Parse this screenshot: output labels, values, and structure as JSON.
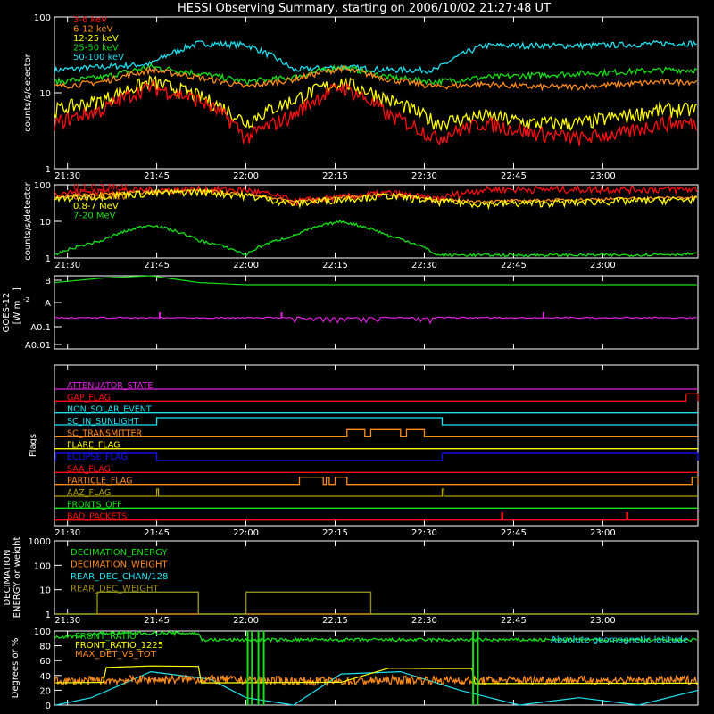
{
  "title": "HESSI Observing Summary, starting on 2006/10/02 21:27:48 UT",
  "colors": {
    "background": "#000000",
    "axis": "#ffffff",
    "red": "#ff1010",
    "orange": "#ff8c1a",
    "yellow": "#ffff00",
    "green": "#16e016",
    "cyan": "#20e0f0",
    "magenta": "#e020e0",
    "blue": "#1414ff",
    "olive": "#b0a000",
    "olive_dark": "#a08800"
  },
  "time_axis": {
    "start_minutes": 1287.8,
    "end_minutes": 1396,
    "ticks": [
      "21:30",
      "21:45",
      "22:00",
      "22:15",
      "22:30",
      "22:45",
      "23:00"
    ]
  },
  "chart_data": [
    {
      "id": "low",
      "type": "line",
      "ylabel": "counts/s/detector",
      "yscale": "log",
      "ylim": [
        1,
        100
      ],
      "yticks": [
        "1",
        "10",
        "100"
      ],
      "legend": [
        "3-6 keV",
        "6-12 keV",
        "12-25 keV",
        "25-50 keV",
        "50-100 keV"
      ],
      "series": [
        {
          "name": "3-6 keV",
          "color": "red",
          "x": [
            1288,
            1296,
            1304,
            1312,
            1320,
            1328,
            1336,
            1344,
            1352,
            1360,
            1368,
            1376,
            1384,
            1390,
            1396
          ],
          "y": [
            4,
            6,
            12,
            8,
            2.5,
            5,
            12,
            5,
            2.5,
            4,
            3,
            2.5,
            3,
            4,
            4
          ]
        },
        {
          "name": "6-12 keV",
          "color": "orange",
          "x": [
            1288,
            1296,
            1304,
            1312,
            1320,
            1328,
            1336,
            1344,
            1352,
            1360,
            1368,
            1376,
            1384,
            1390,
            1396
          ],
          "y": [
            12,
            14,
            20,
            16,
            12,
            15,
            21,
            15,
            12,
            13,
            12,
            12,
            13,
            14,
            14
          ]
        },
        {
          "name": "12-25 keV",
          "color": "yellow",
          "x": [
            1288,
            1296,
            1304,
            1312,
            1320,
            1328,
            1336,
            1344,
            1352,
            1360,
            1368,
            1376,
            1384,
            1390,
            1396
          ],
          "y": [
            6,
            8,
            14,
            9,
            4,
            8,
            14,
            8,
            4,
            5,
            4,
            4,
            5,
            6,
            6
          ]
        },
        {
          "name": "25-50 keV",
          "color": "green",
          "x": [
            1288,
            1296,
            1304,
            1312,
            1320,
            1328,
            1336,
            1344,
            1352,
            1360,
            1368,
            1376,
            1384,
            1390,
            1396
          ],
          "y": [
            14,
            16,
            22,
            18,
            14,
            16,
            22,
            16,
            14,
            16,
            17,
            18,
            19,
            20,
            20
          ]
        },
        {
          "name": "50-100 keV",
          "color": "cyan",
          "x": [
            1288,
            1296,
            1304,
            1312,
            1320,
            1328,
            1336,
            1344,
            1352,
            1360,
            1368,
            1376,
            1384,
            1390,
            1396
          ],
          "y": [
            20,
            22,
            24,
            45,
            43,
            20,
            22,
            20,
            20,
            42,
            42,
            42,
            43,
            45,
            45
          ]
        }
      ]
    },
    {
      "id": "high",
      "type": "line",
      "ylabel": "counts/s/detector",
      "yscale": "log",
      "ylim": [
        1,
        100
      ],
      "yticks": [
        "1",
        "10",
        "100"
      ],
      "legend": [
        "0.1-0.3 MeV",
        "0.3-0.8 MeV",
        "0.8-7 MeV",
        "7-20 MeV"
      ],
      "series": [
        {
          "name": "0.1-0.3 MeV",
          "color": "red",
          "x": [
            1288,
            1300,
            1312,
            1320,
            1328,
            1336,
            1344,
            1352,
            1360,
            1372,
            1384,
            1396
          ],
          "y": [
            60,
            70,
            75,
            72,
            35,
            45,
            60,
            40,
            75,
            75,
            75,
            75
          ]
        },
        {
          "name": "0.3-0.8 MeV",
          "color": "orange",
          "x": [
            1288,
            1300,
            1312,
            1320,
            1328,
            1336,
            1344,
            1352,
            1360,
            1372,
            1384,
            1396
          ],
          "y": [
            45,
            60,
            70,
            55,
            35,
            45,
            55,
            38,
            35,
            38,
            42,
            45
          ]
        },
        {
          "name": "0.8-7 MeV",
          "color": "yellow",
          "x": [
            1288,
            1300,
            1312,
            1320,
            1328,
            1336,
            1344,
            1352,
            1360,
            1372,
            1384,
            1396
          ],
          "y": [
            40,
            55,
            65,
            50,
            30,
            40,
            50,
            35,
            30,
            32,
            36,
            40
          ]
        },
        {
          "name": "7-20 MeV",
          "color": "green",
          "x": [
            1288,
            1296,
            1304,
            1312,
            1320,
            1328,
            1336,
            1344,
            1352,
            1360,
            1372,
            1384,
            1396
          ],
          "y": [
            1.2,
            3,
            8,
            3,
            1.2,
            4,
            10,
            4,
            1.2,
            1.2,
            1.2,
            1.2,
            1.3
          ]
        }
      ]
    },
    {
      "id": "goes",
      "type": "line",
      "ylabel": "GOES-12 [W m^-2]",
      "ylabel_lines": [
        "GOES-12",
        "[W m",
        "-2",
        "]"
      ],
      "yticks": [
        "B",
        "A",
        "A0.1",
        "A0.01"
      ],
      "series": [
        {
          "name": "GOES long",
          "color": "green",
          "x": [
            1288,
            1296,
            1304,
            1312,
            1320,
            1330,
            1340,
            1350,
            1360,
            1380,
            1396
          ],
          "y": [
            0.9,
            1.1,
            1.2,
            0.9,
            0.8,
            0.8,
            0.8,
            0.8,
            0.8,
            0.8,
            0.8
          ]
        },
        {
          "name": "GOES short",
          "color": "magenta",
          "x": [
            1288,
            1320,
            1340,
            1360,
            1396
          ],
          "y": [
            0.09,
            0.09,
            0.085,
            0.09,
            0.09
          ]
        }
      ]
    },
    {
      "id": "flags",
      "type": "line",
      "ylabel": "Flags",
      "legend": [
        "ATTENUATOR_STATE",
        "GAP_FLAG",
        "NON_SOLAR_EVENT",
        "SC_IN_SUNLIGHT",
        "SC_TRANSMITTER",
        "FLARE_FLAG",
        "ECLIPSE_FLAG",
        "SAA_FLAG",
        "PARTICLE_FLAG",
        "AAZ_FLAG",
        "FRONTS_OFF",
        "BAD_PACKETS"
      ],
      "series": [
        {
          "name": "ATTENUATOR_STATE",
          "color": "magenta",
          "on": []
        },
        {
          "name": "GAP_FLAG",
          "color": "red",
          "on": [
            [
              1394,
              1396
            ]
          ]
        },
        {
          "name": "NON_SOLAR_EVENT",
          "color": "cyan",
          "on": []
        },
        {
          "name": "SC_IN_SUNLIGHT",
          "color": "cyan",
          "on": [
            [
              1305,
              1353
            ]
          ]
        },
        {
          "name": "SC_TRANSMITTER",
          "color": "orange",
          "on": [
            [
              1337,
              1340
            ],
            [
              1341,
              1346
            ],
            [
              1347,
              1350
            ]
          ]
        },
        {
          "name": "FLARE_FLAG",
          "color": "yellow",
          "on": []
        },
        {
          "name": "ECLIPSE_FLAG",
          "color": "blue",
          "on": [
            [
              1288,
              1305
            ],
            [
              1353,
              1396
            ]
          ]
        },
        {
          "name": "SAA_FLAG",
          "color": "red",
          "on": []
        },
        {
          "name": "PARTICLE_FLAG",
          "color": "orange",
          "on": [
            [
              1329,
              1333
            ],
            [
              1333.5,
              1334
            ],
            [
              1335,
              1337
            ],
            [
              1395,
              1396
            ]
          ]
        },
        {
          "name": "AAZ_FLAG",
          "color": "olive",
          "on": [
            [
              1305,
              1305.3
            ],
            [
              1353,
              1353.3
            ]
          ]
        },
        {
          "name": "FRONTS_OFF",
          "color": "green",
          "on": []
        },
        {
          "name": "BAD_PACKETS",
          "color": "red",
          "on": [
            [
              1363,
              1363.2
            ],
            [
              1384,
              1384.2
            ]
          ]
        }
      ]
    },
    {
      "id": "decimation",
      "type": "line",
      "ylabel": "DECIMATION ENERGY or weight",
      "ylabel_lines": [
        "DECIMATION",
        "ENERGY or weight"
      ],
      "yscale": "log",
      "ylim": [
        1,
        1000
      ],
      "yticks": [
        "1",
        "10",
        "100",
        "1000"
      ],
      "legend": [
        "DECIMATION_ENERGY",
        "DECIMATION_WEIGHT",
        "REAR_DEC_CHAN/128",
        "REAR_DEC_WEIGHT"
      ],
      "series": [
        {
          "name": "DECIMATION_ENERGY",
          "color": "green",
          "x": [
            1288,
            1396
          ],
          "y": [
            1,
            1
          ]
        },
        {
          "name": "DECIMATION_WEIGHT",
          "color": "orange",
          "x": [
            1288,
            1396
          ],
          "y": [
            1,
            1
          ]
        },
        {
          "name": "REAR_DEC_CHAN/128",
          "color": "cyan",
          "x": [
            1288,
            1295,
            1295,
            1312,
            1312,
            1320,
            1320,
            1341,
            1341,
            1396
          ],
          "y": [
            1,
            1,
            8,
            8,
            1,
            1,
            8,
            8,
            1,
            1
          ]
        },
        {
          "name": "REAR_DEC_WEIGHT",
          "color": "olive_dark",
          "x": [
            1288,
            1295,
            1295,
            1312,
            1312,
            1320,
            1320,
            1341,
            1341,
            1396
          ],
          "y": [
            1,
            1,
            8,
            8,
            1,
            1,
            8,
            8,
            1,
            1
          ]
        }
      ]
    },
    {
      "id": "ratios",
      "type": "line",
      "ylabel": "Degrees or %",
      "ylim": [
        0,
        100
      ],
      "yticks": [
        "0",
        "20",
        "40",
        "60",
        "80",
        "100"
      ],
      "legend": [
        "FRONT_RATIO",
        "FRONT_RATIO_1225",
        "MAX_DET_VS_TOT"
      ],
      "annotation": "Absolute geomagnetic latitude",
      "series": [
        {
          "name": "FRONT_RATIO",
          "color": "green",
          "x": [
            1288,
            1292,
            1296,
            1300,
            1304,
            1308,
            1312,
            1312.5,
            1320,
            1328,
            1336,
            1344,
            1352,
            1360,
            1368,
            1376,
            1384,
            1390,
            1396
          ],
          "y": [
            92,
            93,
            97,
            97,
            97,
            97,
            97,
            88,
            88,
            88,
            88,
            88,
            88,
            88,
            88,
            88,
            88,
            88,
            88
          ]
        },
        {
          "name": "FRONT_RATIO_1225",
          "color": "yellow",
          "x": [
            1288,
            1292,
            1296,
            1296.5,
            1304,
            1312,
            1312.5,
            1336,
            1344,
            1352,
            1356,
            1358,
            1358.5,
            1396
          ],
          "y": [
            30,
            30,
            30,
            50,
            53,
            53,
            30,
            30,
            50,
            50,
            50,
            50,
            30,
            30
          ]
        },
        {
          "name": "MAX_DET_VS_TOT",
          "color": "orange",
          "x": [
            1288,
            1300,
            1312,
            1324,
            1336,
            1348,
            1360,
            1372,
            1384,
            1396
          ],
          "y": [
            32,
            34,
            35,
            33,
            32,
            34,
            33,
            34,
            33,
            34
          ]
        },
        {
          "name": "Absolute geomagnetic latitude",
          "color": "cyan",
          "x": [
            1288,
            1294,
            1304,
            1314,
            1320,
            1328,
            1336,
            1346,
            1356,
            1366,
            1376,
            1386,
            1396
          ],
          "y": [
            0,
            10,
            45,
            35,
            10,
            0,
            42,
            45,
            20,
            0,
            10,
            0,
            20
          ]
        }
      ]
    }
  ]
}
